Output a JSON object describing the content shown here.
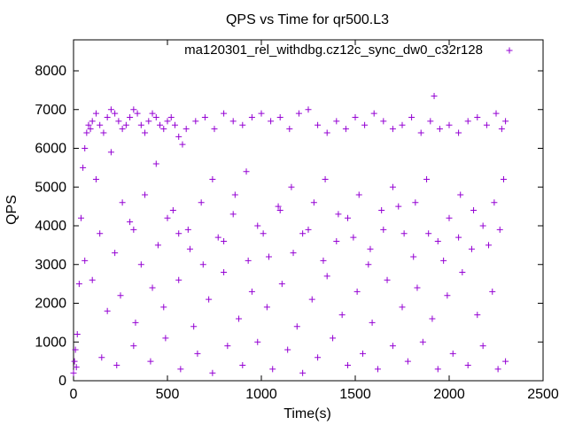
{
  "chart_data": {
    "type": "scatter",
    "title": "QPS vs Time for qr500.L3",
    "xlabel": "Time(s)",
    "ylabel": "QPS",
    "xlim": [
      0,
      2500
    ],
    "ylim": [
      0,
      8800
    ],
    "xticks": [
      0,
      500,
      1000,
      1500,
      2000,
      2500
    ],
    "yticks": [
      0,
      1000,
      2000,
      3000,
      4000,
      5000,
      6000,
      7000,
      8000
    ],
    "grid": false,
    "legend_position": "top-right",
    "marker": "plus",
    "series": [
      {
        "name": "ma120301_rel_withdbg.cz12c_sync_dw0_c32r128",
        "color": "#9400d3",
        "points": [
          [
            0,
            200
          ],
          [
            5,
            500
          ],
          [
            10,
            800
          ],
          [
            15,
            350
          ],
          [
            20,
            1200
          ],
          [
            30,
            2500
          ],
          [
            40,
            4200
          ],
          [
            50,
            5500
          ],
          [
            60,
            6000
          ],
          [
            70,
            6400
          ],
          [
            80,
            6600
          ],
          [
            90,
            6500
          ],
          [
            100,
            6700
          ],
          [
            120,
            6900
          ],
          [
            140,
            6600
          ],
          [
            160,
            6400
          ],
          [
            180,
            6800
          ],
          [
            200,
            7000
          ],
          [
            220,
            6900
          ],
          [
            240,
            6700
          ],
          [
            260,
            6500
          ],
          [
            280,
            6600
          ],
          [
            300,
            6800
          ],
          [
            320,
            7000
          ],
          [
            340,
            6900
          ],
          [
            360,
            6600
          ],
          [
            380,
            6400
          ],
          [
            400,
            6700
          ],
          [
            420,
            6900
          ],
          [
            440,
            6800
          ],
          [
            460,
            6600
          ],
          [
            480,
            6500
          ],
          [
            500,
            6700
          ],
          [
            520,
            6800
          ],
          [
            540,
            6600
          ],
          [
            560,
            6300
          ],
          [
            580,
            6100
          ],
          [
            600,
            6500
          ],
          [
            650,
            6700
          ],
          [
            700,
            6800
          ],
          [
            750,
            6500
          ],
          [
            800,
            6900
          ],
          [
            850,
            6700
          ],
          [
            900,
            6600
          ],
          [
            950,
            6800
          ],
          [
            1000,
            6900
          ],
          [
            1050,
            6700
          ],
          [
            1100,
            6800
          ],
          [
            1150,
            6500
          ],
          [
            1200,
            6900
          ],
          [
            1250,
            7000
          ],
          [
            1300,
            6600
          ],
          [
            1350,
            6400
          ],
          [
            1400,
            6700
          ],
          [
            1450,
            6500
          ],
          [
            1500,
            6800
          ],
          [
            1550,
            6600
          ],
          [
            1600,
            6900
          ],
          [
            1650,
            6700
          ],
          [
            1700,
            6500
          ],
          [
            1750,
            6600
          ],
          [
            1800,
            6800
          ],
          [
            1850,
            6400
          ],
          [
            1900,
            6700
          ],
          [
            1920,
            7350
          ],
          [
            1950,
            6500
          ],
          [
            2000,
            6600
          ],
          [
            2050,
            6400
          ],
          [
            2100,
            6700
          ],
          [
            2150,
            6800
          ],
          [
            2200,
            6600
          ],
          [
            2250,
            6900
          ],
          [
            2280,
            6500
          ],
          [
            2300,
            6700
          ],
          [
            120,
            5200
          ],
          [
            200,
            5900
          ],
          [
            260,
            4600
          ],
          [
            320,
            3900
          ],
          [
            380,
            4800
          ],
          [
            440,
            5600
          ],
          [
            500,
            4200
          ],
          [
            560,
            3800
          ],
          [
            620,
            3400
          ],
          [
            680,
            4600
          ],
          [
            740,
            5200
          ],
          [
            800,
            3600
          ],
          [
            860,
            4800
          ],
          [
            920,
            5400
          ],
          [
            980,
            4000
          ],
          [
            1040,
            3200
          ],
          [
            1100,
            4400
          ],
          [
            1160,
            5000
          ],
          [
            1220,
            3800
          ],
          [
            1280,
            4600
          ],
          [
            1340,
            5200
          ],
          [
            1400,
            3600
          ],
          [
            1460,
            4200
          ],
          [
            1520,
            4800
          ],
          [
            1580,
            3400
          ],
          [
            1640,
            4400
          ],
          [
            1700,
            5000
          ],
          [
            1760,
            3800
          ],
          [
            1820,
            4600
          ],
          [
            1880,
            5200
          ],
          [
            1940,
            3600
          ],
          [
            2000,
            4200
          ],
          [
            2060,
            4800
          ],
          [
            2120,
            3400
          ],
          [
            2180,
            4000
          ],
          [
            2240,
            4600
          ],
          [
            2290,
            5200
          ],
          [
            100,
            2600
          ],
          [
            180,
            1800
          ],
          [
            250,
            2200
          ],
          [
            330,
            1500
          ],
          [
            420,
            2400
          ],
          [
            480,
            1900
          ],
          [
            560,
            2600
          ],
          [
            640,
            1400
          ],
          [
            720,
            2100
          ],
          [
            800,
            2800
          ],
          [
            880,
            1600
          ],
          [
            950,
            2300
          ],
          [
            1030,
            1900
          ],
          [
            1110,
            2500
          ],
          [
            1190,
            1400
          ],
          [
            1270,
            2100
          ],
          [
            1350,
            2700
          ],
          [
            1430,
            1700
          ],
          [
            1510,
            2300
          ],
          [
            1590,
            1500
          ],
          [
            1670,
            2600
          ],
          [
            1750,
            1900
          ],
          [
            1830,
            2400
          ],
          [
            1910,
            1600
          ],
          [
            1990,
            2200
          ],
          [
            2070,
            2800
          ],
          [
            2150,
            1700
          ],
          [
            2230,
            2300
          ],
          [
            150,
            600
          ],
          [
            230,
            400
          ],
          [
            320,
            900
          ],
          [
            410,
            500
          ],
          [
            490,
            1100
          ],
          [
            570,
            300
          ],
          [
            660,
            700
          ],
          [
            740,
            200
          ],
          [
            820,
            900
          ],
          [
            900,
            400
          ],
          [
            980,
            1000
          ],
          [
            1060,
            300
          ],
          [
            1140,
            800
          ],
          [
            1220,
            200
          ],
          [
            1300,
            600
          ],
          [
            1380,
            1100
          ],
          [
            1460,
            400
          ],
          [
            1540,
            700
          ],
          [
            1620,
            300
          ],
          [
            1700,
            900
          ],
          [
            1780,
            500
          ],
          [
            1860,
            1000
          ],
          [
            1940,
            300
          ],
          [
            2020,
            700
          ],
          [
            2100,
            400
          ],
          [
            2180,
            900
          ],
          [
            2260,
            300
          ],
          [
            2300,
            500
          ],
          [
            60,
            3100
          ],
          [
            140,
            3800
          ],
          [
            220,
            3300
          ],
          [
            300,
            4100
          ],
          [
            360,
            3000
          ],
          [
            450,
            3500
          ],
          [
            530,
            4400
          ],
          [
            610,
            3900
          ],
          [
            690,
            3000
          ],
          [
            770,
            3700
          ],
          [
            850,
            4300
          ],
          [
            930,
            3100
          ],
          [
            1010,
            3800
          ],
          [
            1090,
            4500
          ],
          [
            1170,
            3300
          ],
          [
            1250,
            3900
          ],
          [
            1330,
            3100
          ],
          [
            1410,
            4300
          ],
          [
            1490,
            3700
          ],
          [
            1570,
            3000
          ],
          [
            1650,
            3900
          ],
          [
            1730,
            4500
          ],
          [
            1810,
            3200
          ],
          [
            1890,
            3800
          ],
          [
            1970,
            3100
          ],
          [
            2050,
            3700
          ],
          [
            2130,
            4400
          ],
          [
            2210,
            3500
          ],
          [
            2270,
            3900
          ]
        ]
      }
    ]
  }
}
